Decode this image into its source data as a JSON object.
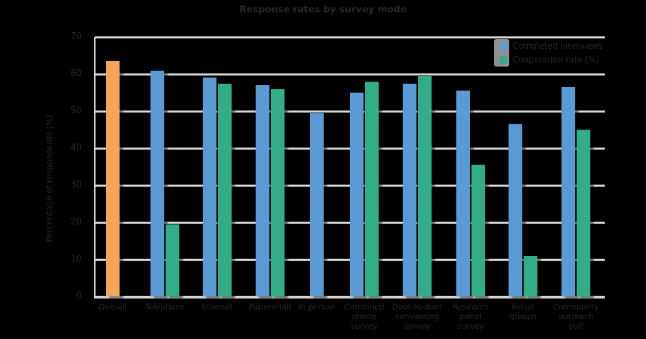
{
  "chart_data": {
    "type": "bar",
    "title": "Response rates by survey mode",
    "ylabel": "Percentage of respondents (%)",
    "xlabel": "",
    "ylim": [
      0,
      70
    ],
    "yticks": [
      0,
      10,
      20,
      30,
      40,
      50,
      60,
      70
    ],
    "grid": "horizontal",
    "legend_position": "top-right",
    "background": "transparent-black",
    "categories": [
      "Overall",
      "Telephone",
      "Internet",
      "Paper/mail",
      "In person",
      "Combined\nphone\nsurvey",
      "Door-to-door\ncanvassing\nsurvey",
      "Research\npanel\nsurvey",
      "Focus\ngroups",
      "Community\noutreach\npoll"
    ],
    "series": [
      {
        "name": "Overall",
        "color": "#F2A45A",
        "in_legend": false,
        "values": [
          63.5,
          null,
          null,
          null,
          null,
          null,
          null,
          null,
          null,
          null
        ]
      },
      {
        "name": "Completed interviews",
        "color": "#5B9BD5",
        "in_legend": true,
        "values": [
          null,
          61,
          59,
          57,
          49.5,
          55,
          57.5,
          55.5,
          46.5,
          56.5
        ]
      },
      {
        "name": "Cooperation rate (%)",
        "color": "#31AE87",
        "in_legend": true,
        "values": [
          null,
          19.5,
          57.5,
          56,
          null,
          58,
          59.5,
          35.5,
          11,
          45
        ]
      }
    ]
  },
  "colors": {
    "gridline": "#d8d8d8",
    "axis": "#d4d4d4",
    "text": "#272727",
    "legend_chip": "#8f8f8f",
    "background": "#000000"
  }
}
